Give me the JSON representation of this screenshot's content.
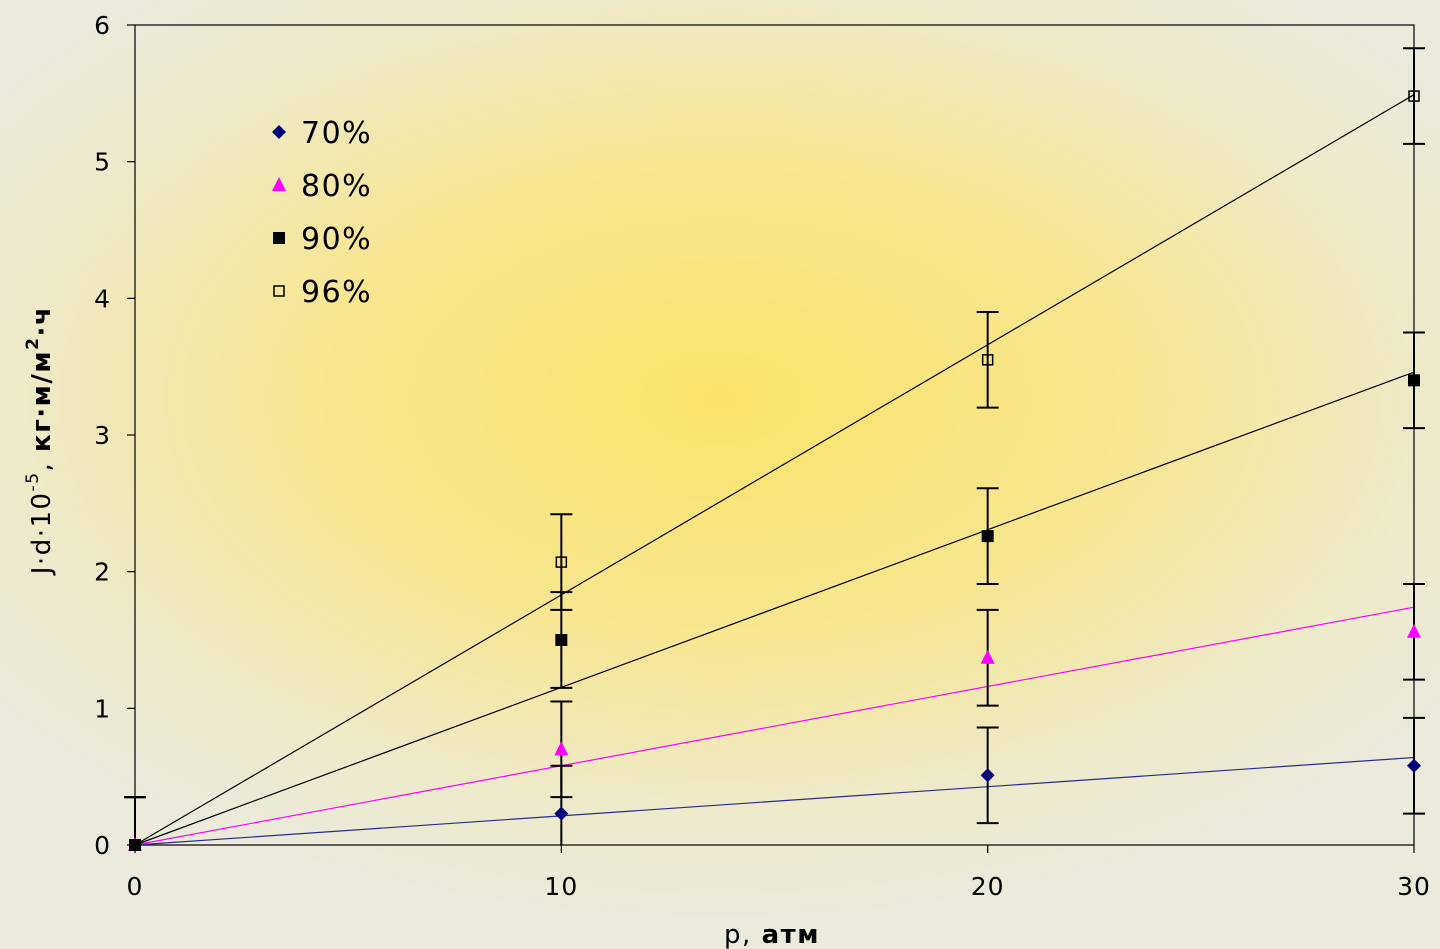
{
  "chart_data": {
    "type": "scatter",
    "xlabel_prefix": "p, ",
    "xlabel_unit": "атм",
    "ylabel_prefix": "J·d·10",
    "ylabel_exp": "-5",
    "ylabel_sep": ", ",
    "ylabel_unit": "кг·м/м",
    "ylabel_unit_exp": "2",
    "ylabel_unit_tail": "·ч",
    "xlim": [
      0,
      30
    ],
    "ylim": [
      0,
      6
    ],
    "x_ticks": [
      0,
      10,
      20,
      30
    ],
    "y_ticks": [
      0,
      1,
      2,
      3,
      4,
      5,
      6
    ],
    "grid": false,
    "legend_position": "top-left",
    "series": [
      {
        "name": "70%",
        "marker": "diamond-filled",
        "color": "#00007a",
        "line_color": "#2a2a8c",
        "x": [
          0,
          10,
          20,
          30
        ],
        "y": [
          0,
          0.23,
          0.51,
          0.58
        ],
        "err": [
          0.35,
          0.35,
          0.35,
          0.35
        ],
        "fit_end": 0.64
      },
      {
        "name": "80%",
        "marker": "triangle-filled",
        "color": "#ff00ff",
        "line_color": "#ff00ff",
        "x": [
          0,
          10,
          20,
          30
        ],
        "y": [
          0,
          0.7,
          1.37,
          1.56
        ],
        "err": [
          0.35,
          0.35,
          0.35,
          0.35
        ],
        "fit_end": 1.74
      },
      {
        "name": "90%",
        "marker": "square-filled",
        "color": "#000000",
        "line_color": "#000000",
        "x": [
          0,
          10,
          20,
          30
        ],
        "y": [
          0,
          1.5,
          2.26,
          3.4
        ],
        "err": [
          0.35,
          0.35,
          0.35,
          0.35
        ],
        "fit_end": 3.46
      },
      {
        "name": "96%",
        "marker": "square-open",
        "color": "#000000",
        "line_color": "#000000",
        "x": [
          0,
          10,
          20,
          30
        ],
        "y": [
          0,
          2.07,
          3.55,
          5.48
        ],
        "err": [
          0.35,
          0.35,
          0.35,
          0.35
        ],
        "fit_end": 5.49
      }
    ]
  }
}
